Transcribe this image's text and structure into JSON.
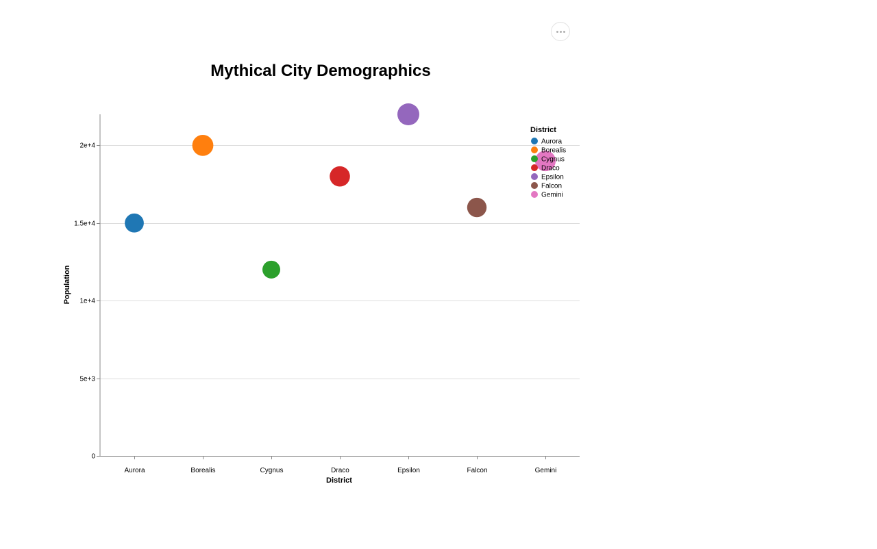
{
  "menu": {
    "icon": "more-horizontal-icon"
  },
  "chart_data": {
    "type": "scatter",
    "title": "Mythical City Demographics",
    "xlabel": "District",
    "ylabel": "Population",
    "categories": [
      "Aurora",
      "Borealis",
      "Cygnus",
      "Draco",
      "Epsilon",
      "Falcon",
      "Gemini"
    ],
    "values": [
      15000,
      20000,
      12000,
      18000,
      22000,
      16000,
      19000
    ],
    "colors": [
      "#1f77b4",
      "#ff7f0e",
      "#2ca02c",
      "#d62728",
      "#9467bd",
      "#8c564b",
      "#e377c2"
    ],
    "ylim": [
      0,
      22000
    ],
    "yticks": [
      {
        "value": 0,
        "label": "0"
      },
      {
        "value": 5000,
        "label": "5e+3"
      },
      {
        "value": 10000,
        "label": "1e+4"
      },
      {
        "value": 15000,
        "label": "1.5e+4"
      },
      {
        "value": 20000,
        "label": "2e+4"
      }
    ],
    "grid": true,
    "legend": {
      "title": "District",
      "placement": "top-right",
      "entries": [
        "Aurora",
        "Borealis",
        "Cygnus",
        "Draco",
        "Epsilon",
        "Falcon",
        "Gemini"
      ]
    }
  }
}
